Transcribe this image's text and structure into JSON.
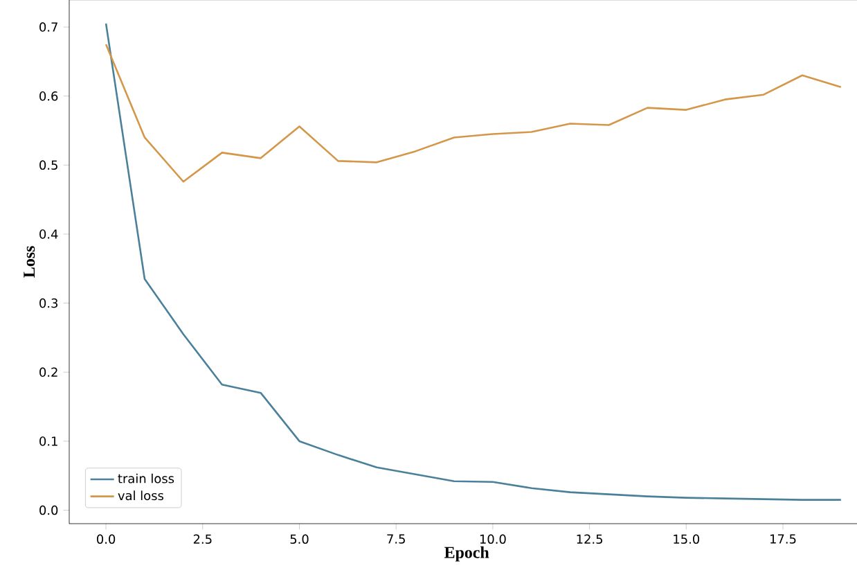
{
  "chart_data": {
    "type": "line",
    "xlabel": "Epoch",
    "ylabel": "Loss",
    "x": [
      0,
      1,
      2,
      3,
      4,
      5,
      6,
      7,
      8,
      9,
      10,
      11,
      12,
      13,
      14,
      15,
      16,
      17,
      18,
      19
    ],
    "series": [
      {
        "name": "train loss",
        "color": "#4a8099",
        "values": [
          0.705,
          0.335,
          0.255,
          0.182,
          0.17,
          0.1,
          0.08,
          0.062,
          0.052,
          0.042,
          0.041,
          0.032,
          0.026,
          0.023,
          0.02,
          0.018,
          0.017,
          0.016,
          0.015,
          0.015
        ]
      },
      {
        "name": "val loss",
        "color": "#d4974a",
        "values": [
          0.675,
          0.54,
          0.476,
          0.518,
          0.51,
          0.556,
          0.506,
          0.504,
          0.52,
          0.54,
          0.545,
          0.548,
          0.56,
          0.558,
          0.583,
          0.58,
          0.595,
          0.602,
          0.63,
          0.613
        ]
      }
    ],
    "xlim": [
      -0.95,
      19.6
    ],
    "ylim": [
      -0.0195,
      0.7395
    ],
    "xticks": [
      {
        "value": 0,
        "label": "0.0"
      },
      2.5,
      {
        "value": 5,
        "label": "5.0"
      },
      7.5,
      {
        "value": 10,
        "label": "10.0"
      },
      12.5,
      {
        "value": 15,
        "label": "15.0"
      },
      17.5
    ],
    "yticks": [
      {
        "value": 0,
        "label": "0.0"
      },
      0.1,
      0.2,
      0.3,
      0.4,
      0.5,
      0.6,
      0.7
    ],
    "legend": "bottom left",
    "grid": false,
    "marker": "none",
    "line_style": "solid"
  }
}
